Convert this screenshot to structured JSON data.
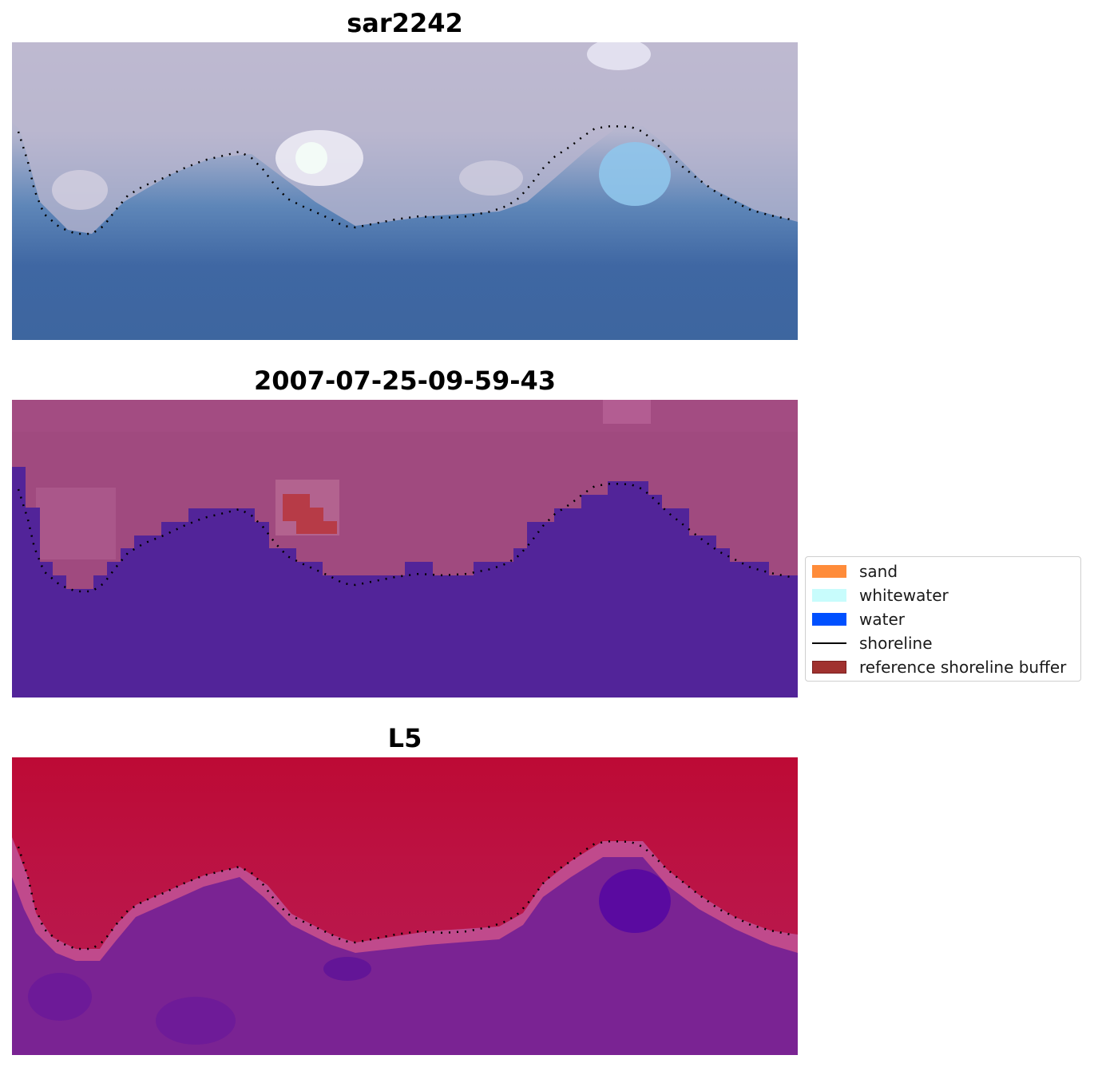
{
  "panels": [
    {
      "id": "rgb",
      "title": "sar2242",
      "image": "rgb composite satellite image"
    },
    {
      "id": "classified",
      "title": "2007-07-25-09-59-43",
      "image": "classified image overlay"
    },
    {
      "id": "index",
      "title": "L5",
      "image": "water index image"
    }
  ],
  "legend": {
    "items": [
      {
        "label": "sand",
        "color": "#ff8c3a",
        "kind": "patch"
      },
      {
        "label": "whitewater",
        "color": "#c8fcfc",
        "kind": "patch"
      },
      {
        "label": "water",
        "color": "#0050ff",
        "kind": "patch"
      },
      {
        "label": "shoreline",
        "color": "#000000",
        "kind": "line"
      },
      {
        "label": "reference shoreline buffer",
        "color": "#a0312f",
        "kind": "patch"
      }
    ]
  },
  "colors": {
    "sky_light": "#c3bdd0",
    "sea": "#3f67a3",
    "magenta": "#a14a82",
    "purple": "#522499",
    "buffer_red": "#b73b47",
    "crimson": "#bd0a35",
    "violet": "#7a2393",
    "deep_violet": "#5a0aa0"
  }
}
